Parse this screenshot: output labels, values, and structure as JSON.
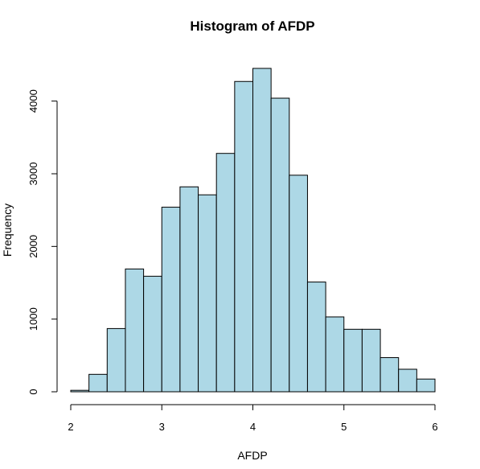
{
  "chart_data": {
    "type": "bar",
    "title": "Histogram of AFDP",
    "xlabel": "AFDP",
    "ylabel": "Frequency",
    "bar_color": "#add8e6",
    "border_color": "#000000",
    "bin_width": 0.2,
    "bin_starts": [
      2.0,
      2.2,
      2.4,
      2.6,
      2.8,
      3.0,
      3.2,
      3.4,
      3.6,
      3.8,
      4.0,
      4.2,
      4.4,
      4.6,
      4.8,
      5.0,
      5.2,
      5.4,
      5.6,
      5.8
    ],
    "values": [
      20,
      240,
      870,
      1690,
      1590,
      2540,
      2820,
      2710,
      3280,
      4270,
      4450,
      4040,
      2980,
      1510,
      1030,
      860,
      860,
      470,
      310,
      175
    ],
    "xlim": [
      2,
      6
    ],
    "ylim": [
      0,
      4450
    ],
    "x_ticks": [
      2,
      3,
      4,
      5,
      6
    ],
    "x_tick_labels": [
      "2",
      "3",
      "4",
      "5",
      "6"
    ],
    "y_ticks": [
      0,
      1000,
      2000,
      3000,
      4000
    ],
    "y_tick_labels": [
      "0",
      "1000",
      "2000",
      "3000",
      "4000"
    ],
    "grid": false
  }
}
